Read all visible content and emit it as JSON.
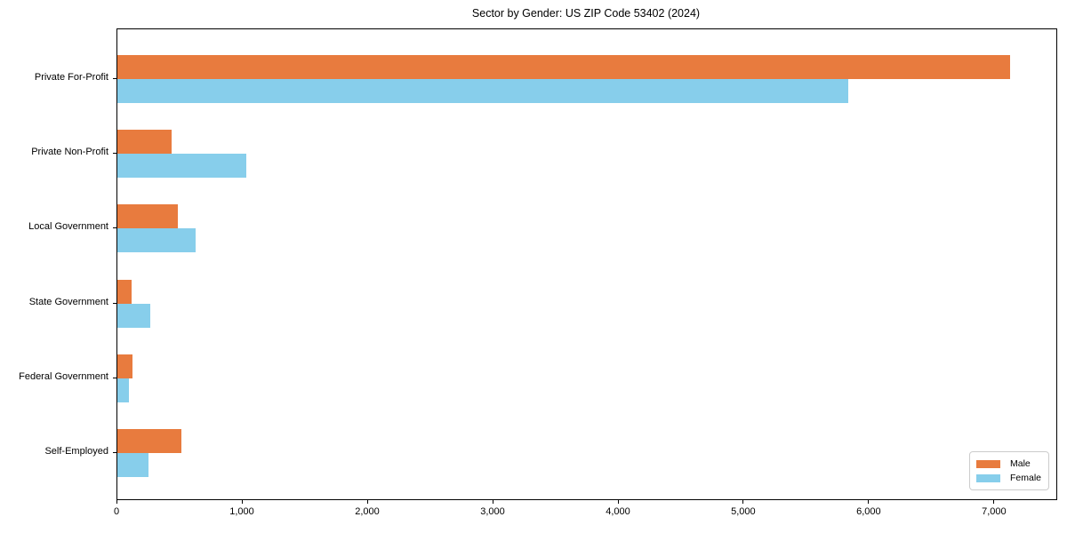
{
  "chart_data": {
    "type": "bar",
    "orientation": "horizontal",
    "title": "Sector by Gender: US ZIP Code 53402 (2024)",
    "categories": [
      "Private For-Profit",
      "Private Non-Profit",
      "Local Government",
      "State Government",
      "Federal Government",
      "Self-Employed"
    ],
    "series": [
      {
        "name": "Male",
        "color": "#e87b3e",
        "values": [
          7120,
          430,
          480,
          115,
          120,
          510
        ]
      },
      {
        "name": "Female",
        "color": "#87ceeb",
        "values": [
          5830,
          1025,
          625,
          260,
          95,
          250
        ]
      }
    ],
    "xlabel": "",
    "ylabel": "",
    "xlim": [
      0,
      7490
    ],
    "xticks": [
      0,
      1000,
      2000,
      3000,
      4000,
      5000,
      6000,
      7000
    ],
    "xtick_labels": [
      "0",
      "1,000",
      "2,000",
      "3,000",
      "4,000",
      "5,000",
      "6,000",
      "7,000"
    ],
    "grid": false,
    "legend_position": "lower right",
    "axis_color": "#000000",
    "background_color": "#ffffff"
  }
}
